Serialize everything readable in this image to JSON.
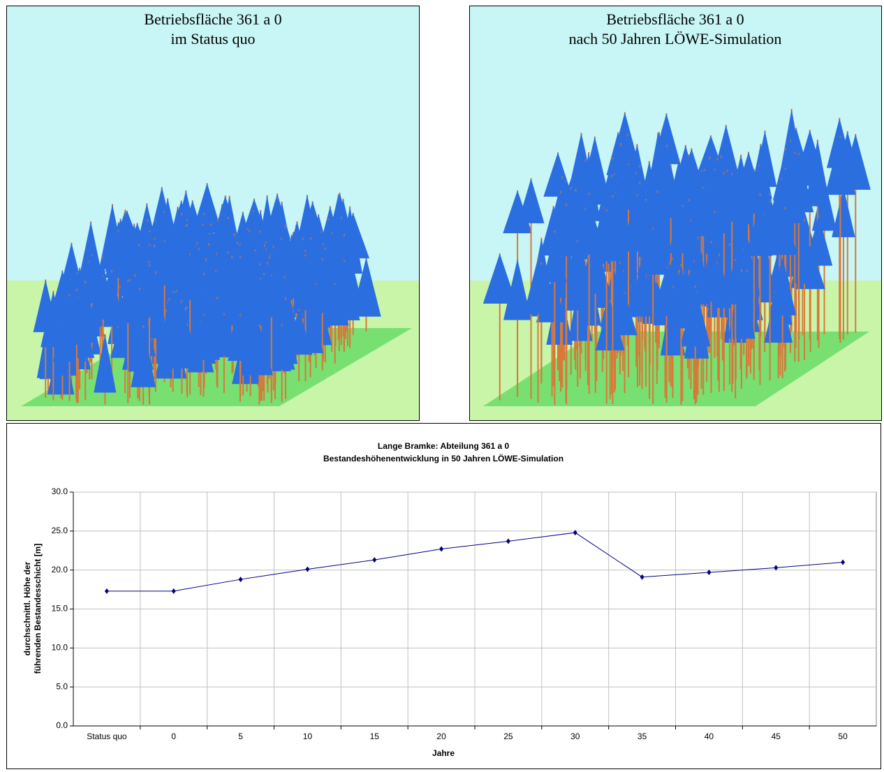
{
  "panels": [
    {
      "title": [
        "Betriebsfläche 361 a 0",
        "im Status quo"
      ]
    },
    {
      "title": [
        "Betriebsfläche 361 a 0",
        "nach 50 Jahren LÖWE-Simulation"
      ]
    }
  ],
  "chart_data": {
    "type": "line",
    "title": "Lange Bramke: Abteilung 361 a 0",
    "subtitle": "Bestandeshöhenentwicklung in 50 Jahren LÖWE-Simulation",
    "y_label": [
      "durchschnittl. Höhe der",
      "führenden Bestandesschicht [m]"
    ],
    "x_label": "Jahre",
    "categories": [
      "Status quo",
      "0",
      "5",
      "10",
      "15",
      "20",
      "25",
      "30",
      "35",
      "40",
      "45",
      "50"
    ],
    "values": [
      17.3,
      17.3,
      18.8,
      20.1,
      21.3,
      22.7,
      23.7,
      24.8,
      19.1,
      19.7,
      20.3,
      21.0
    ],
    "color": "#000080",
    "ylim": [
      0,
      30
    ],
    "yticks": [
      {
        "value": 0,
        "label": "0.0"
      },
      {
        "value": 5,
        "label": "5.0"
      },
      {
        "value": 10,
        "label": "10.0"
      },
      {
        "value": 15,
        "label": "15.0"
      },
      {
        "value": 20,
        "label": "20.0"
      },
      {
        "value": 25,
        "label": "25.0"
      },
      {
        "value": 30,
        "label": "30.0"
      }
    ],
    "grid": true
  }
}
